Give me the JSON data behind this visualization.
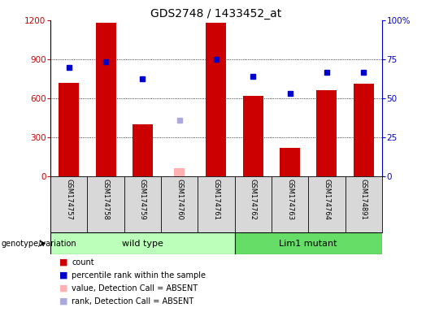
{
  "title": "GDS2748 / 1433452_at",
  "samples": [
    "GSM174757",
    "GSM174758",
    "GSM174759",
    "GSM174760",
    "GSM174761",
    "GSM174762",
    "GSM174763",
    "GSM174764",
    "GSM174891"
  ],
  "count_values": [
    720,
    1180,
    400,
    null,
    1180,
    620,
    220,
    660,
    710
  ],
  "count_absent": [
    null,
    null,
    null,
    60,
    null,
    null,
    null,
    null,
    null
  ],
  "percentile_values": [
    840,
    880,
    750,
    null,
    900,
    770,
    640,
    800,
    800
  ],
  "percentile_absent": [
    null,
    null,
    null,
    430,
    null,
    null,
    null,
    null,
    null
  ],
  "wild_type_indices": [
    0,
    1,
    2,
    3,
    4
  ],
  "lim1_mutant_indices": [
    5,
    6,
    7,
    8
  ],
  "ylim_left": [
    0,
    1200
  ],
  "ylim_right": [
    0,
    100
  ],
  "yticks_left": [
    0,
    300,
    600,
    900,
    1200
  ],
  "yticks_right": [
    0,
    25,
    50,
    75,
    100
  ],
  "ytick_right_labels": [
    "0",
    "25",
    "50",
    "75",
    "100%"
  ],
  "bar_color": "#cc0000",
  "bar_absent_color": "#ffb0b0",
  "dot_color": "#0000cc",
  "dot_absent_color": "#aaaadd",
  "wildtype_color": "#bbffbb",
  "mutant_color": "#66dd66",
  "bg_color": "#d8d8d8",
  "label_color_left": "#cc0000",
  "label_color_right": "#0000cc"
}
